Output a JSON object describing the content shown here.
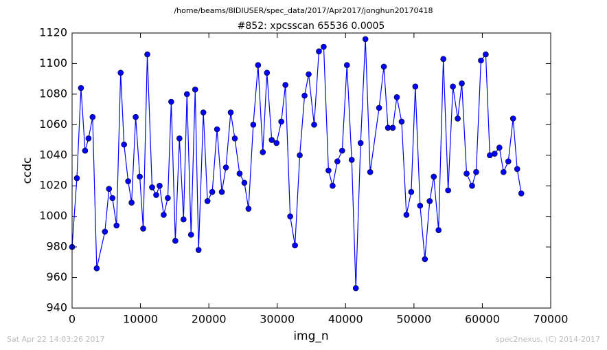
{
  "chart_data": {
    "type": "line",
    "subtitle": "/home/beams/8IDIUSER/spec_data/2017/Apr2017/jonghun20170418",
    "title": "#852: xpcsscan 65536 0.0005",
    "x_label": "img_n",
    "y_label": "ccdc",
    "footer_left": "Sat Apr 22 14:03:26 2017",
    "footer_right": "spec2nexus, (C) 2014-2017",
    "xlim": [
      0,
      70000
    ],
    "xticks": [
      0,
      10000,
      20000,
      30000,
      40000,
      50000,
      60000,
      70000
    ],
    "ylim": [
      940,
      1120
    ],
    "yticks": [
      940,
      960,
      980,
      1000,
      1020,
      1040,
      1060,
      1080,
      1100,
      1120
    ],
    "grid": false,
    "series": [
      {
        "name": "ccdc",
        "color": "#0000ff",
        "x": [
          0,
          700,
          1300,
          1900,
          2400,
          3000,
          3600,
          4800,
          5400,
          5900,
          6500,
          7100,
          7600,
          8200,
          8700,
          9300,
          9900,
          10400,
          11000,
          11700,
          12300,
          12800,
          13400,
          14000,
          14500,
          15100,
          15700,
          16300,
          16800,
          17400,
          18000,
          18500,
          19200,
          19800,
          20500,
          21200,
          21900,
          22500,
          23200,
          23800,
          24500,
          25200,
          25800,
          26500,
          27200,
          27900,
          28500,
          29200,
          29900,
          30600,
          31200,
          31900,
          32600,
          33300,
          34000,
          34600,
          35400,
          36100,
          36800,
          37500,
          38100,
          38800,
          39500,
          40200,
          40900,
          41500,
          42200,
          42900,
          43600,
          44900,
          45600,
          46200,
          46900,
          47500,
          48200,
          48900,
          49600,
          50200,
          50900,
          51600,
          52300,
          52900,
          53600,
          54300,
          55000,
          55700,
          56400,
          57000,
          57700,
          58500,
          59100,
          59800,
          60500,
          61100,
          61800,
          62500,
          63100,
          63800,
          64500,
          65100,
          65700
        ],
        "values": [
          980,
          1025,
          1084,
          1043,
          1051,
          1065,
          966,
          990,
          1018,
          1012,
          994,
          1094,
          1047,
          1023,
          1009,
          1065,
          1026,
          992,
          1106,
          1019,
          1014,
          1020,
          1001,
          1012,
          1075,
          984,
          1051,
          998,
          1080,
          988,
          1083,
          978,
          1068,
          1010,
          1016,
          1057,
          1016,
          1032,
          1068,
          1051,
          1028,
          1022,
          1005,
          1060,
          1099,
          1042,
          1094,
          1050,
          1048,
          1062,
          1086,
          1000,
          981,
          1040,
          1079,
          1093,
          1060,
          1108,
          1111,
          1030,
          1020,
          1036,
          1043,
          1099,
          1037,
          953,
          1048,
          1116,
          1029,
          1071,
          1098,
          1058,
          1058,
          1078,
          1062,
          1001,
          1016,
          1085,
          1007,
          972,
          1010,
          1026,
          991,
          1103,
          1017,
          1085,
          1064,
          1087,
          1028,
          1020,
          1029,
          1102,
          1106,
          1040,
          1041,
          1045,
          1029,
          1036,
          1064,
          1031,
          1015
        ]
      }
    ]
  }
}
